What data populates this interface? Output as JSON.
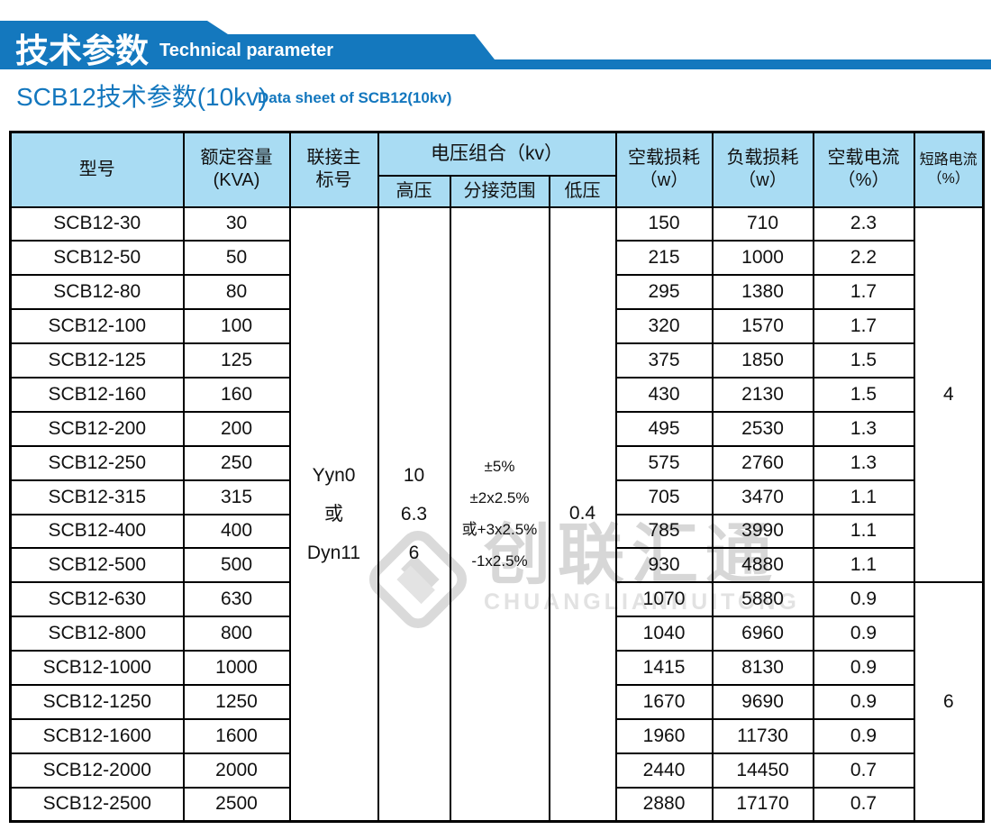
{
  "banner": {
    "title": "技术参数",
    "subtitle": "Technical parameter"
  },
  "heading": {
    "title": "SCB12技术参数(10kv)",
    "subtitle": "Data sheet of SCB12(10kv)"
  },
  "colors": {
    "banner_blue": "#1478be",
    "heading_blue": "#1377be",
    "table_header_bg": "#a9dcf3",
    "border_black": "#000000"
  },
  "watermark": {
    "cn": "创联汇通",
    "en": "CHUANGLIANHUITONG"
  },
  "table": {
    "headers": {
      "model": "型号",
      "capacity": [
        "额定容量",
        "(KVA)"
      ],
      "connection": [
        "联接主",
        "标号"
      ],
      "voltage_combo": "电压组合（kv）",
      "high_voltage": "高压",
      "tap_range": "分接范围",
      "low_voltage": "低压",
      "no_load_loss": [
        "空载损耗",
        "（w）"
      ],
      "load_loss": [
        "负载损耗",
        "（w）"
      ],
      "no_load_current": [
        "空载电流",
        "（%）"
      ],
      "short_circuit_current": [
        "短路电流",
        "（%）"
      ]
    },
    "merged": {
      "connection": [
        "Yyn0",
        "或",
        "Dyn11"
      ],
      "high_voltage": [
        "10",
        "6.3",
        "6"
      ],
      "tap_range": [
        "±5%",
        "±2x2.5%",
        "或+3x2.5%",
        "-1x2.5%"
      ],
      "low_voltage": "0.4",
      "short_circuit_rows_1_11": "4",
      "short_circuit_rows_12_18": "6"
    },
    "rows": [
      {
        "model": "SCB12-30",
        "kva": "30",
        "no_load_loss": "150",
        "load_loss": "710",
        "no_load_current": "2.3"
      },
      {
        "model": "SCB12-50",
        "kva": "50",
        "no_load_loss": "215",
        "load_loss": "1000",
        "no_load_current": "2.2"
      },
      {
        "model": "SCB12-80",
        "kva": "80",
        "no_load_loss": "295",
        "load_loss": "1380",
        "no_load_current": "1.7"
      },
      {
        "model": "SCB12-100",
        "kva": "100",
        "no_load_loss": "320",
        "load_loss": "1570",
        "no_load_current": "1.7"
      },
      {
        "model": "SCB12-125",
        "kva": "125",
        "no_load_loss": "375",
        "load_loss": "1850",
        "no_load_current": "1.5"
      },
      {
        "model": "SCB12-160",
        "kva": "160",
        "no_load_loss": "430",
        "load_loss": "2130",
        "no_load_current": "1.5"
      },
      {
        "model": "SCB12-200",
        "kva": "200",
        "no_load_loss": "495",
        "load_loss": "2530",
        "no_load_current": "1.3"
      },
      {
        "model": "SCB12-250",
        "kva": "250",
        "no_load_loss": "575",
        "load_loss": "2760",
        "no_load_current": "1.3"
      },
      {
        "model": "SCB12-315",
        "kva": "315",
        "no_load_loss": "705",
        "load_loss": "3470",
        "no_load_current": "1.1"
      },
      {
        "model": "SCB12-400",
        "kva": "400",
        "no_load_loss": "785",
        "load_loss": "3990",
        "no_load_current": "1.1"
      },
      {
        "model": "SCB12-500",
        "kva": "500",
        "no_load_loss": "930",
        "load_loss": "4880",
        "no_load_current": "1.1"
      },
      {
        "model": "SCB12-630",
        "kva": "630",
        "no_load_loss": "1070",
        "load_loss": "5880",
        "no_load_current": "0.9"
      },
      {
        "model": "SCB12-800",
        "kva": "800",
        "no_load_loss": "1040",
        "load_loss": "6960",
        "no_load_current": "0.9"
      },
      {
        "model": "SCB12-1000",
        "kva": "1000",
        "no_load_loss": "1415",
        "load_loss": "8130",
        "no_load_current": "0.9"
      },
      {
        "model": "SCB12-1250",
        "kva": "1250",
        "no_load_loss": "1670",
        "load_loss": "9690",
        "no_load_current": "0.9"
      },
      {
        "model": "SCB12-1600",
        "kva": "1600",
        "no_load_loss": "1960",
        "load_loss": "11730",
        "no_load_current": "0.9"
      },
      {
        "model": "SCB12-2000",
        "kva": "2000",
        "no_load_loss": "2440",
        "load_loss": "14450",
        "no_load_current": "0.7"
      },
      {
        "model": "SCB12-2500",
        "kva": "2500",
        "no_load_loss": "2880",
        "load_loss": "17170",
        "no_load_current": "0.7"
      }
    ]
  }
}
